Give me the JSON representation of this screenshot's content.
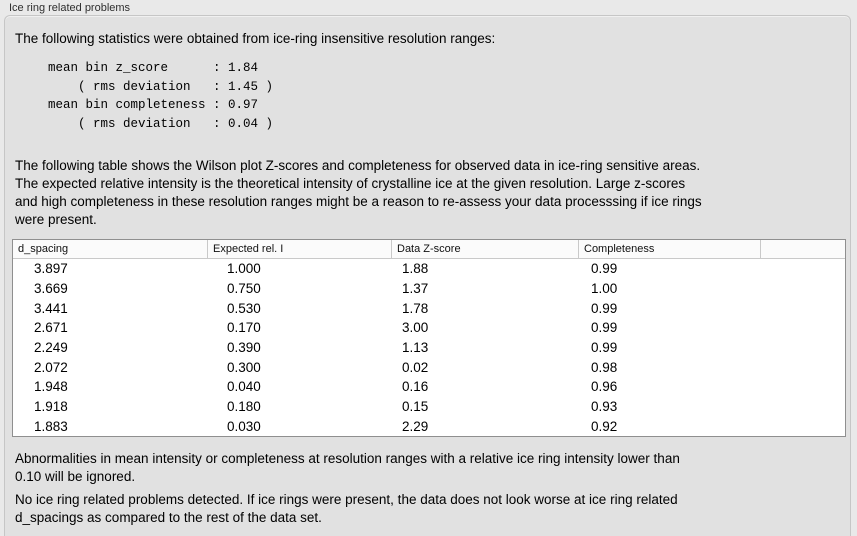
{
  "panel": {
    "title": "Ice ring related problems"
  },
  "stats": {
    "intro": "The following statistics were obtained from ice-ring insensitive resolution ranges:",
    "lines": [
      "mean bin z_score      : 1.84",
      "    ( rms deviation   : 1.45 )",
      "mean bin completeness : 0.97",
      "    ( rms deviation   : 0.04 )"
    ]
  },
  "description": {
    "lines": [
      "The following table shows the Wilson plot Z-scores and completeness for observed data in ice-ring sensitive areas.",
      "The expected relative intensity is the theoretical intensity of crystalline ice at the given resolution. Large z-scores",
      "and high completeness in these resolution ranges might be a reason to re-assess your data processsing if ice rings",
      "were present."
    ]
  },
  "table": {
    "columns": [
      "d_spacing",
      "Expected rel. I",
      "Data Z-score",
      "Completeness",
      ""
    ],
    "rows": [
      [
        "3.897",
        "1.000",
        "1.88",
        "0.99"
      ],
      [
        "3.669",
        "0.750",
        "1.37",
        "1.00"
      ],
      [
        "3.441",
        "0.530",
        "1.78",
        "0.99"
      ],
      [
        "2.671",
        "0.170",
        "3.00",
        "0.99"
      ],
      [
        "2.249",
        "0.390",
        "1.13",
        "0.99"
      ],
      [
        "2.072",
        "0.300",
        "0.02",
        "0.98"
      ],
      [
        "1.948",
        "0.040",
        "0.16",
        "0.96"
      ],
      [
        "1.918",
        "0.180",
        "0.15",
        "0.93"
      ],
      [
        "1.883",
        "0.030",
        "2.29",
        "0.92"
      ]
    ]
  },
  "notes": {
    "ignore_lines": [
      "Abnormalities in mean intensity or completeness at resolution ranges with a relative ice ring intensity lower than",
      "0.10 will be ignored."
    ],
    "conclusion_lines": [
      "No ice ring related problems detected. If ice rings were present, the data does not look worse at ice ring related",
      "d_spacings as compared to the rest of the data set."
    ]
  },
  "colors": {
    "page_bg": "#e9e9e9",
    "box_bg": "#e1e1e1",
    "box_border": "#c6c6c6",
    "table_bg": "#ffffff",
    "table_border": "#8f8f8f",
    "header_separator": "#c9c9c9",
    "text": "#000000"
  }
}
